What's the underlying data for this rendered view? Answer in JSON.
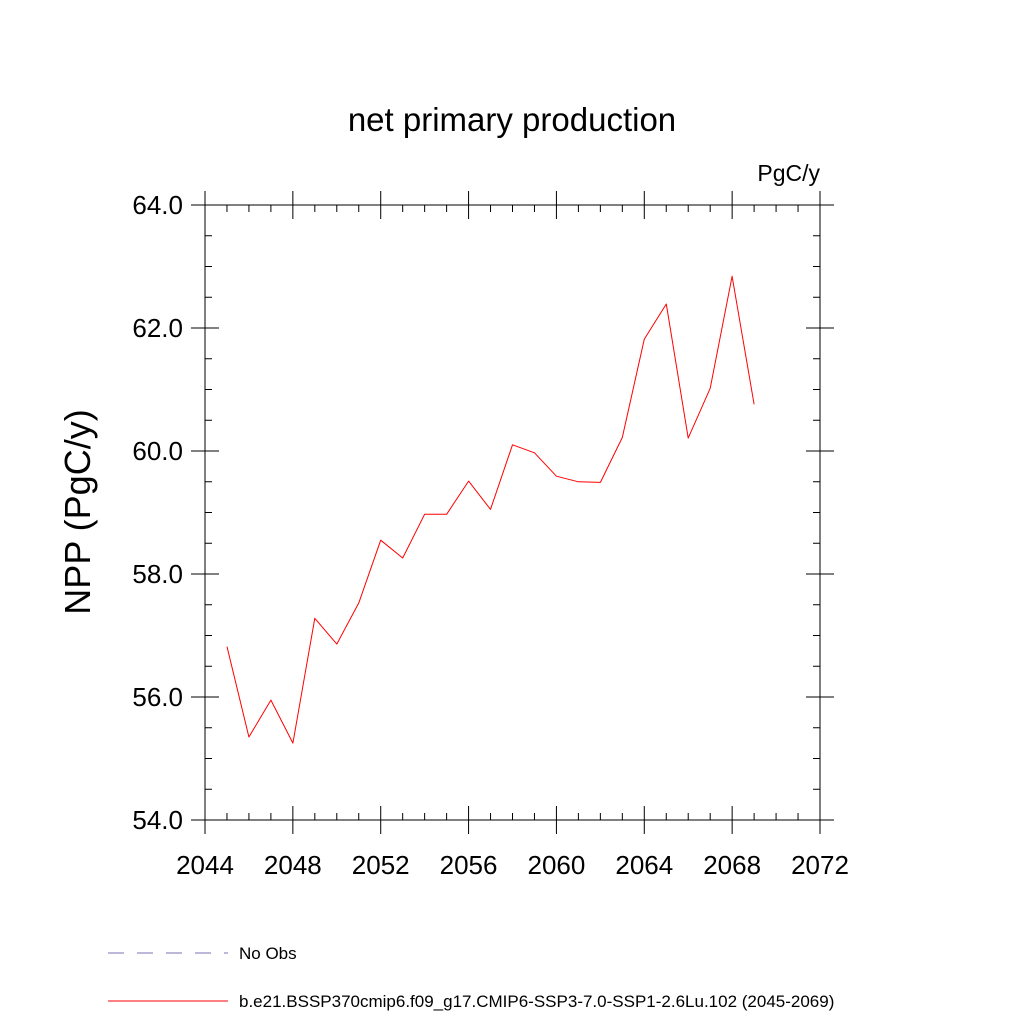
{
  "chart_data": {
    "type": "line",
    "title": "net primary production",
    "units_label": "PgC/y",
    "ylabel": "NPP  (PgC/y)",
    "xlabel": "",
    "xlim": [
      2044,
      2072
    ],
    "ylim": [
      54.0,
      64.0
    ],
    "x_ticks": [
      2044,
      2048,
      2052,
      2056,
      2060,
      2064,
      2068,
      2072
    ],
    "x_tick_labels": [
      "2044",
      "2048",
      "2052",
      "2056",
      "2060",
      "2064",
      "2068",
      "2072"
    ],
    "y_ticks": [
      54.0,
      56.0,
      58.0,
      60.0,
      62.0,
      64.0
    ],
    "y_tick_labels": [
      "54.0",
      "56.0",
      "58.0",
      "60.0",
      "62.0",
      "64.0"
    ],
    "grid": false,
    "legend_position": "bottom",
    "series": [
      {
        "name": "b.e21.BSSP370cmip6.f09_g17.CMIP6-SSP3-7.0-SSP1-2.6Lu.102 (2045-2069)",
        "color": "#ff0000",
        "style": "solid",
        "x": [
          2045,
          2046,
          2047,
          2048,
          2049,
          2050,
          2051,
          2052,
          2053,
          2054,
          2055,
          2056,
          2057,
          2058,
          2059,
          2060,
          2061,
          2062,
          2063,
          2064,
          2065,
          2066,
          2067,
          2068,
          2069
        ],
        "values": [
          56.82,
          55.35,
          55.95,
          55.25,
          57.28,
          56.86,
          57.53,
          58.55,
          58.26,
          58.97,
          58.97,
          59.51,
          59.05,
          60.1,
          59.97,
          59.59,
          59.5,
          59.49,
          60.22,
          61.82,
          62.39,
          60.21,
          61.02,
          62.84,
          60.76
        ]
      }
    ],
    "legend": [
      {
        "label": "No Obs",
        "color": "#7b6fb5",
        "style": "dashed"
      },
      {
        "label": "b.e21.BSSP370cmip6.f09_g17.CMIP6-SSP3-7.0-SSP1-2.6Lu.102 (2045-2069)",
        "color": "#ff0000",
        "style": "solid"
      }
    ]
  }
}
